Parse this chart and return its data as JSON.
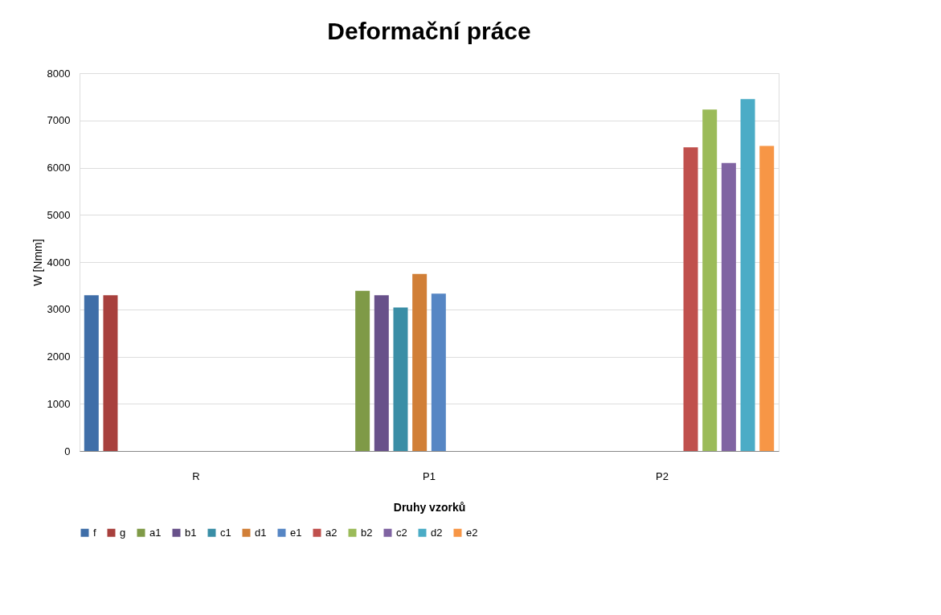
{
  "chart_data": {
    "type": "bar",
    "title": "Deformační práce",
    "xlabel": "Druhy vzorků",
    "ylabel": "W [Nmm]",
    "categories": [
      "R",
      "P1",
      "P2"
    ],
    "series": [
      {
        "name": "f",
        "color": "#3f6ea8",
        "values": [
          3300,
          null,
          null
        ]
      },
      {
        "name": "g",
        "color": "#a8403d",
        "values": [
          3300,
          null,
          null
        ]
      },
      {
        "name": "a1",
        "color": "#7f9a47",
        "values": [
          null,
          3390,
          null
        ]
      },
      {
        "name": "b1",
        "color": "#68518a",
        "values": [
          null,
          3300,
          null
        ]
      },
      {
        "name": "c1",
        "color": "#3a8ea6",
        "values": [
          null,
          3040,
          null
        ]
      },
      {
        "name": "d1",
        "color": "#d17f37",
        "values": [
          null,
          3750,
          null
        ]
      },
      {
        "name": "e1",
        "color": "#5686c4",
        "values": [
          null,
          3330,
          null
        ]
      },
      {
        "name": "a2",
        "color": "#c0504d",
        "values": [
          null,
          null,
          6430
        ]
      },
      {
        "name": "b2",
        "color": "#9bbb59",
        "values": [
          null,
          null,
          7230
        ]
      },
      {
        "name": "c2",
        "color": "#8064a2",
        "values": [
          null,
          null,
          6100
        ]
      },
      {
        "name": "d2",
        "color": "#4bacc6",
        "values": [
          null,
          null,
          7450
        ]
      },
      {
        "name": "e2",
        "color": "#f79646",
        "values": [
          null,
          null,
          6460
        ]
      }
    ],
    "ylim": [
      0,
      8000
    ],
    "yticks": [
      0,
      1000,
      2000,
      3000,
      4000,
      5000,
      6000,
      7000,
      8000
    ],
    "grid": "y",
    "legend": "bottom"
  }
}
